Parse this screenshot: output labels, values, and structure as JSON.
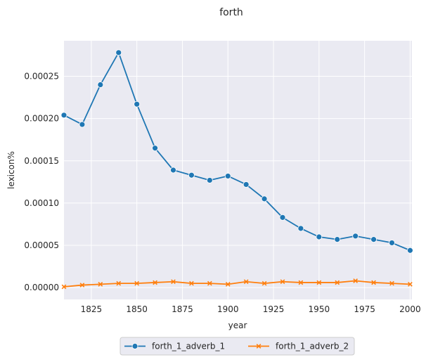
{
  "chart_data": {
    "type": "line",
    "title": "forth",
    "xlabel": "year",
    "ylabel": "lexicon%",
    "xlim": [
      1810,
      2001
    ],
    "ylim": [
      -1.4e-05,
      0.000292
    ],
    "xticks": [
      1825,
      1850,
      1875,
      1900,
      1925,
      1950,
      1975,
      2000
    ],
    "yticks": [
      0.0,
      5e-05,
      0.0001,
      0.00015,
      0.0002,
      0.00025
    ],
    "ytick_labels": [
      "0.00000",
      "0.00005",
      "0.00010",
      "0.00015",
      "0.00020",
      "0.00025"
    ],
    "grid": true,
    "legend_position": "bottom-center",
    "x": [
      1810,
      1820,
      1830,
      1840,
      1850,
      1860,
      1870,
      1880,
      1890,
      1900,
      1910,
      1920,
      1930,
      1940,
      1950,
      1960,
      1970,
      1980,
      1990,
      2000
    ],
    "series": [
      {
        "name": "forth_1_adverb_1",
        "color": "#1f77b4",
        "marker": "circle",
        "values": [
          0.000204,
          0.000193,
          0.00024,
          0.000278,
          0.000217,
          0.000165,
          0.000139,
          0.000133,
          0.000127,
          0.000132,
          0.000122,
          0.000105,
          8.3e-05,
          7e-05,
          6e-05,
          5.7e-05,
          6.1e-05,
          5.7e-05,
          5.3e-05,
          4.4e-05
        ]
      },
      {
        "name": "forth_1_adverb_2",
        "color": "#ff7f0e",
        "marker": "x",
        "values": [
          1e-06,
          3e-06,
          4e-06,
          5e-06,
          5e-06,
          6e-06,
          7e-06,
          5e-06,
          5e-06,
          4e-06,
          7e-06,
          5e-06,
          7e-06,
          6e-06,
          6e-06,
          6e-06,
          8e-06,
          6e-06,
          5e-06,
          4e-06
        ]
      }
    ]
  }
}
